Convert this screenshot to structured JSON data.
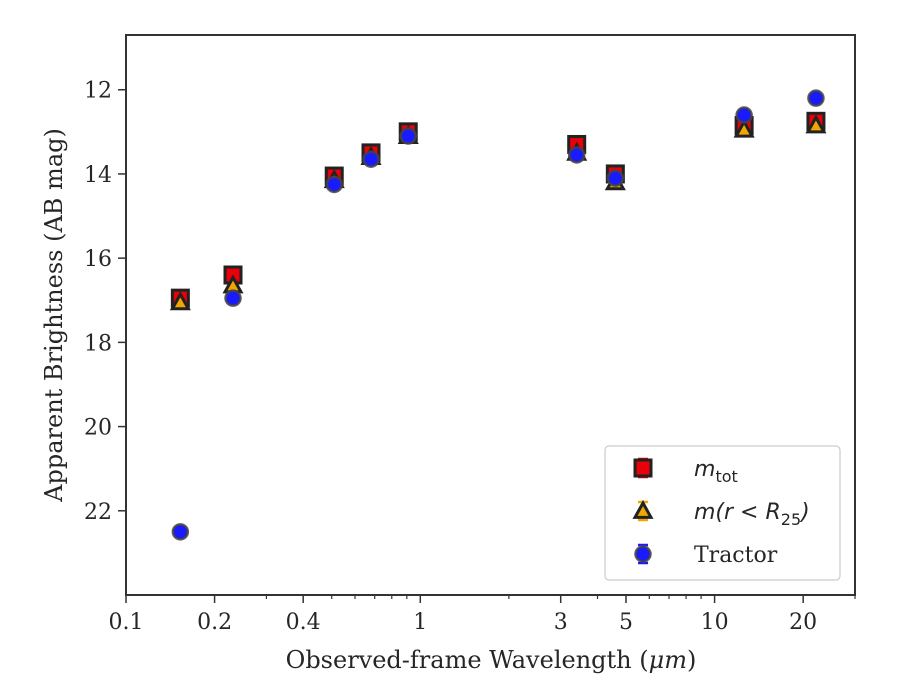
{
  "chart_data": {
    "type": "scatter",
    "xlabel": "Observed-frame Wavelength (",
    "xlabel_unit": "μm",
    "xlabel_close": ")",
    "ylabel": "Apparent Brightness (AB mag)",
    "xscale": "log",
    "xlim": [
      0.1,
      30
    ],
    "ylim": [
      24,
      10.7
    ],
    "y_inverted": true,
    "xticks": [
      {
        "value": 0.1,
        "label": "0.1"
      },
      {
        "value": 0.2,
        "label": "0.2"
      },
      {
        "value": 0.4,
        "label": "0.4"
      },
      {
        "value": 1,
        "label": "1"
      },
      {
        "value": 3,
        "label": "3"
      },
      {
        "value": 5,
        "label": "5"
      },
      {
        "value": 10,
        "label": "10"
      },
      {
        "value": 20,
        "label": "20"
      }
    ],
    "yticks": [
      {
        "value": 12,
        "label": "12"
      },
      {
        "value": 14,
        "label": "14"
      },
      {
        "value": 16,
        "label": "16"
      },
      {
        "value": 18,
        "label": "18"
      },
      {
        "value": 20,
        "label": "20"
      },
      {
        "value": 22,
        "label": "22"
      }
    ],
    "grid": false,
    "legend_position": "bottom-right",
    "series": [
      {
        "name": "m_tot",
        "marker": "square",
        "color": "#e8000b",
        "error_color": "#e8000b",
        "edge_color": "#222222",
        "x": [
          0.153,
          0.231,
          0.51,
          0.68,
          0.91,
          3.4,
          4.6,
          12.6,
          22.1
        ],
        "y": [
          16.95,
          16.4,
          14.05,
          13.5,
          13.0,
          13.3,
          14.0,
          12.85,
          12.75
        ]
      },
      {
        "name": "m(r < R_25)",
        "marker": "triangle",
        "color": "#f0a800",
        "error_color": "#f0a800",
        "edge_color": "#222222",
        "x": [
          0.153,
          0.231,
          0.51,
          0.68,
          0.91,
          3.4,
          4.6,
          12.6,
          22.1
        ],
        "y": [
          17.05,
          16.65,
          14.15,
          13.6,
          13.1,
          13.5,
          14.2,
          12.95,
          12.85
        ]
      },
      {
        "name": "Tractor",
        "marker": "circle",
        "color": "#1a1aff",
        "error_color": "#1a1aff",
        "edge_color": "#444444",
        "x": [
          0.153,
          0.231,
          0.51,
          0.68,
          0.91,
          3.4,
          4.6,
          12.6,
          22.1
        ],
        "y": [
          22.5,
          16.95,
          14.25,
          13.65,
          13.1,
          13.55,
          14.1,
          12.6,
          12.2
        ]
      }
    ],
    "legend": [
      {
        "key": "m_tot",
        "main": "m",
        "sub": "tot",
        "rest": ""
      },
      {
        "key": "m_r25",
        "main": "m(r < R",
        "sub": "25",
        "rest": ")"
      },
      {
        "key": "tractor",
        "main": "Tractor",
        "sub": "",
        "rest": ""
      }
    ]
  }
}
